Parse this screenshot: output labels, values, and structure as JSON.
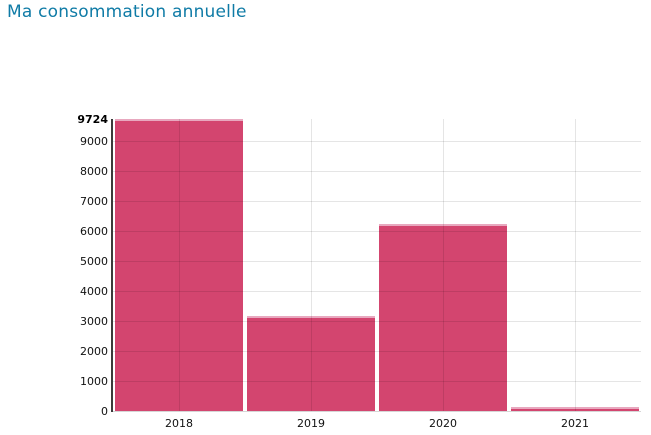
{
  "title": "Ma consommation annuelle",
  "title_color": "#0f7ba6",
  "chart_data": {
    "type": "bar",
    "title": "Ma consommation annuelle",
    "categories": [
      "2018",
      "2019",
      "2020",
      "2021"
    ],
    "values": [
      9724,
      3180,
      6230,
      130
    ],
    "y_ticks": [
      0,
      1000,
      2000,
      3000,
      4000,
      5000,
      6000,
      7000,
      8000,
      9000,
      9724
    ],
    "ylim": [
      0,
      9724
    ],
    "xlabel": "",
    "ylabel": "",
    "bar_color": "#d3456f",
    "bar_edge_color": "#e8a8bf",
    "axis_color": "#3a3a3a",
    "grid": true,
    "legend": false,
    "max_tick_bold": true
  }
}
